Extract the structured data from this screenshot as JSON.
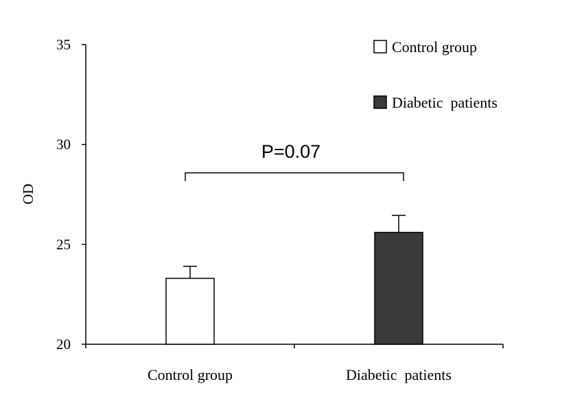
{
  "chart_data": {
    "type": "bar",
    "categories": [
      "Control group",
      "Diabetic  patients"
    ],
    "series": [
      {
        "name": "Control group",
        "values": [
          23.3,
          null
        ],
        "errors": [
          0.6,
          null
        ],
        "color": "#ffffff"
      },
      {
        "name": "Diabetic  patients",
        "values": [
          null,
          25.6
        ],
        "errors": [
          null,
          0.85
        ],
        "color": "#3a3a3a"
      }
    ],
    "ylabel": "OD",
    "xlabel": "",
    "ylim": [
      20,
      35
    ],
    "yticks": [
      "20",
      "25",
      "30",
      "35"
    ],
    "grid": false,
    "legend_position": "top-right",
    "annotation": {
      "text": "P=0.07",
      "between": [
        "Control group",
        "Diabetic  patients"
      ]
    }
  }
}
